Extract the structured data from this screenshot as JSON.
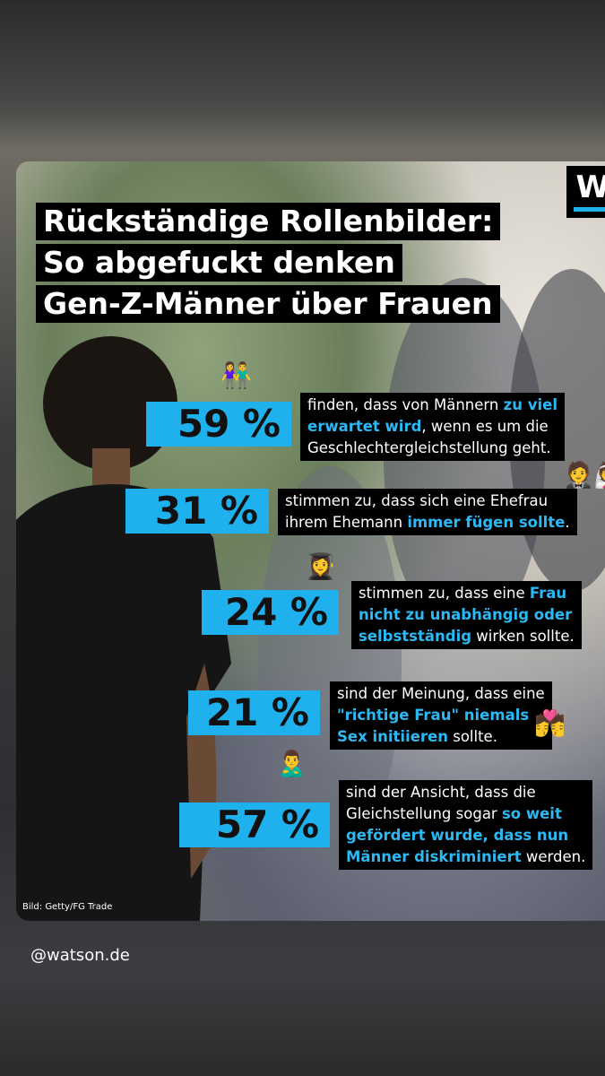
{
  "title": [
    "Rückständige Rollenbilder:",
    "So abgefuckt denken",
    "Gen-Z-Männer über Frauen"
  ],
  "logo": "W",
  "stats": [
    {
      "value": "59 %",
      "emoji": "👫",
      "lines": [
        [
          {
            "text": "finden, dass von Männern "
          },
          {
            "text": "zu viel",
            "em": true
          }
        ],
        [
          {
            "text": "erwartet wird",
            "em": true
          },
          {
            "text": ", wenn es um die"
          }
        ],
        [
          {
            "text": "Geschlechtergleichstellung geht."
          }
        ]
      ]
    },
    {
      "value": "31 %",
      "emoji": "🤵👰",
      "lines": [
        [
          {
            "text": "stimmen zu, dass sich eine Ehefrau"
          }
        ],
        [
          {
            "text": "ihrem Ehemann "
          },
          {
            "text": "immer fügen sollte",
            "em": true
          },
          {
            "text": "."
          }
        ]
      ]
    },
    {
      "value": "24 %",
      "emoji": "👩‍🎓",
      "lines": [
        [
          {
            "text": "stimmen zu, dass eine "
          },
          {
            "text": "Frau",
            "em": true
          }
        ],
        [
          {
            "text": "nicht zu unabhängig oder",
            "em": true
          }
        ],
        [
          {
            "text": "selbstständig",
            "em": true
          },
          {
            "text": " wirken sollte."
          }
        ]
      ]
    },
    {
      "value": "21 %",
      "emoji": "💏",
      "lines": [
        [
          {
            "text": "sind der Meinung, dass eine"
          }
        ],
        [
          {
            "text": "\"richtige Frau\" niemals",
            "em": true
          }
        ],
        [
          {
            "text": "Sex initiieren",
            "em": true
          },
          {
            "text": " sollte."
          }
        ]
      ]
    },
    {
      "value": "57 %",
      "emoji": "🙎‍♂️",
      "lines": [
        [
          {
            "text": "sind der Ansicht, dass die"
          }
        ],
        [
          {
            "text": "Gleichstellung sogar "
          },
          {
            "text": "so weit",
            "em": true
          }
        ],
        [
          {
            "text": "gefördert wurde, dass nun",
            "em": true
          }
        ],
        [
          {
            "text": "Männer diskriminiert",
            "em": true
          },
          {
            "text": " werden."
          }
        ]
      ]
    }
  ],
  "credit": "Bild: Getty/FG Trade",
  "handle": "@watson.de"
}
